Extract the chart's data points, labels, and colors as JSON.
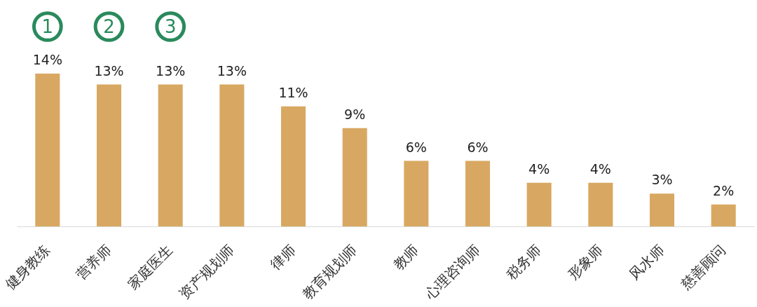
{
  "chart_data": {
    "type": "bar",
    "categories": [
      "健身教练",
      "营养师",
      "家庭医生",
      "资产规划师",
      "律师",
      "教育规划师",
      "教师",
      "心理咨询师",
      "税务师",
      "形象师",
      "风水师",
      "慈善顾问"
    ],
    "values": [
      14,
      13,
      13,
      13,
      11,
      9,
      6,
      6,
      4,
      4,
      3,
      2
    ],
    "value_labels": [
      "14%",
      "13%",
      "13%",
      "13%",
      "11%",
      "9%",
      "6%",
      "6%",
      "4%",
      "4%",
      "3%",
      "2%"
    ],
    "color": "#d8a862",
    "tick_labels": "x",
    "annotations": [
      "1",
      "2",
      "3"
    ]
  }
}
